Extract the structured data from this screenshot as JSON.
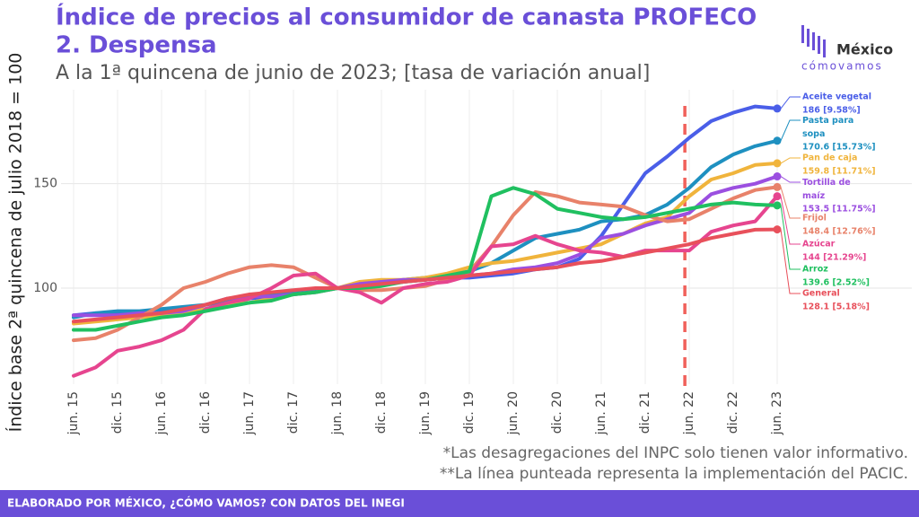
{
  "chart_data": {
    "type": "line",
    "title": "Índice de precios al consumidor de canasta PROFECO",
    "subtitle_1": "2. Despensa",
    "subtitle_2": "A la 1ª quincena de junio de 2023; [tasa de variación anual]",
    "y_label": "Índice base 2ª quincena de julio 2018 = 100",
    "notes": [
      "*Las desagregaciones del INPC solo tienen valor informativo.",
      "**La línea punteada representa la implementación del PACIC."
    ],
    "source": "ELABORADO POR MÉXICO, ¿CÓMO VAMOS? CON DATOS DEL INEGI",
    "logo": {
      "top": "México",
      "bottom": "cómovamos"
    },
    "categories": [
      "jun. 15",
      null,
      "dic. 15",
      null,
      "jun. 16",
      null,
      "dic. 16",
      null,
      "jun. 17",
      null,
      "dic. 17",
      null,
      "jun. 18",
      null,
      "dic. 18",
      null,
      "jun. 19",
      null,
      "dic. 19",
      null,
      "jun. 20",
      null,
      "dic. 20",
      null,
      "jun. 21",
      null,
      "dic. 21",
      null,
      "jun. 22",
      null,
      "dic. 22",
      null,
      "jun. 23"
    ],
    "ylim": [
      54,
      195
    ],
    "yticks": [
      100,
      150
    ],
    "grid": true,
    "reference_line": {
      "index": 27.8,
      "color": "#f0605a",
      "style": "dashed"
    },
    "series": [
      {
        "name": "Aceite vegetal",
        "color": "#4a5ee8",
        "value_label": "186 [9.58%]",
        "values": [
          87,
          88,
          88,
          88,
          89,
          89,
          90,
          92,
          95,
          96,
          97,
          99,
          100,
          101,
          102,
          103,
          104,
          105,
          105,
          106,
          107,
          109,
          110,
          114,
          125,
          140,
          155,
          163,
          172,
          180,
          184,
          187,
          186
        ]
      },
      {
        "name": "Pasta para sopa",
        "color": "#1e90c0",
        "value_label": "170.6 [15.73%]",
        "values": [
          86,
          88,
          89,
          89,
          90,
          91,
          92,
          94,
          96,
          97,
          98,
          99,
          100,
          101,
          102,
          104,
          105,
          106,
          108,
          112,
          118,
          124,
          126,
          128,
          132,
          133,
          135,
          140,
          148,
          158,
          164,
          168,
          170.6
        ]
      },
      {
        "name": "Pan de caja",
        "color": "#f0b43c",
        "value_label": "159.8 [11.71%]",
        "values": [
          83,
          84,
          85,
          86,
          87,
          88,
          90,
          92,
          93,
          95,
          97,
          98,
          100,
          103,
          104,
          104,
          105,
          107,
          110,
          112,
          113,
          115,
          117,
          119,
          121,
          126,
          131,
          134,
          144,
          152,
          155,
          159,
          159.8
        ]
      },
      {
        "name": "Tortilla de maíz",
        "color": "#9b4fe0",
        "value_label": "153.5 [11.75%]",
        "values": [
          87,
          87,
          87,
          88,
          88,
          89,
          92,
          95,
          96,
          96,
          97,
          98,
          100,
          102,
          103,
          104,
          104,
          105,
          106,
          107,
          109,
          110,
          112,
          116,
          124,
          126,
          130,
          133,
          136,
          145,
          148,
          150,
          153.5
        ]
      },
      {
        "name": "Frijol",
        "color": "#e8826a",
        "value_label": "148.4 [12.76%]",
        "values": [
          75,
          76,
          80,
          86,
          92,
          100,
          103,
          107,
          110,
          111,
          110,
          105,
          100,
          99,
          99,
          100,
          101,
          104,
          108,
          120,
          135,
          146,
          144,
          141,
          140,
          139,
          135,
          132,
          133,
          138,
          143,
          147,
          148.4
        ]
      },
      {
        "name": "Azúcar",
        "color": "#e6458f",
        "value_label": "144 [21.29%]",
        "values": [
          58,
          62,
          70,
          72,
          75,
          80,
          90,
          93,
          95,
          100,
          106,
          107,
          100,
          98,
          93,
          100,
          102,
          103,
          106,
          120,
          121,
          125,
          121,
          118,
          117,
          115,
          118,
          118,
          118,
          127,
          130,
          132,
          144
        ]
      },
      {
        "name": "Arroz",
        "color": "#20c060",
        "value_label": "139.6 [2.52%]",
        "values": [
          80,
          80,
          82,
          84,
          86,
          87,
          89,
          91,
          93,
          94,
          97,
          98,
          100,
          100,
          101,
          103,
          104,
          106,
          108,
          144,
          148,
          145,
          138,
          136,
          134,
          133,
          134,
          136,
          138,
          140,
          141,
          140,
          139.6
        ]
      },
      {
        "name": "General",
        "color": "#e8505b",
        "value_label": "128.1 [5.18%]",
        "values": [
          84,
          85,
          86,
          87,
          88,
          90,
          92,
          95,
          97,
          98,
          99,
          100,
          100,
          101,
          102,
          103,
          104,
          105,
          106,
          107,
          108,
          109,
          110,
          112,
          113,
          115,
          117,
          119,
          121,
          124,
          126,
          128,
          128.1
        ]
      }
    ]
  }
}
